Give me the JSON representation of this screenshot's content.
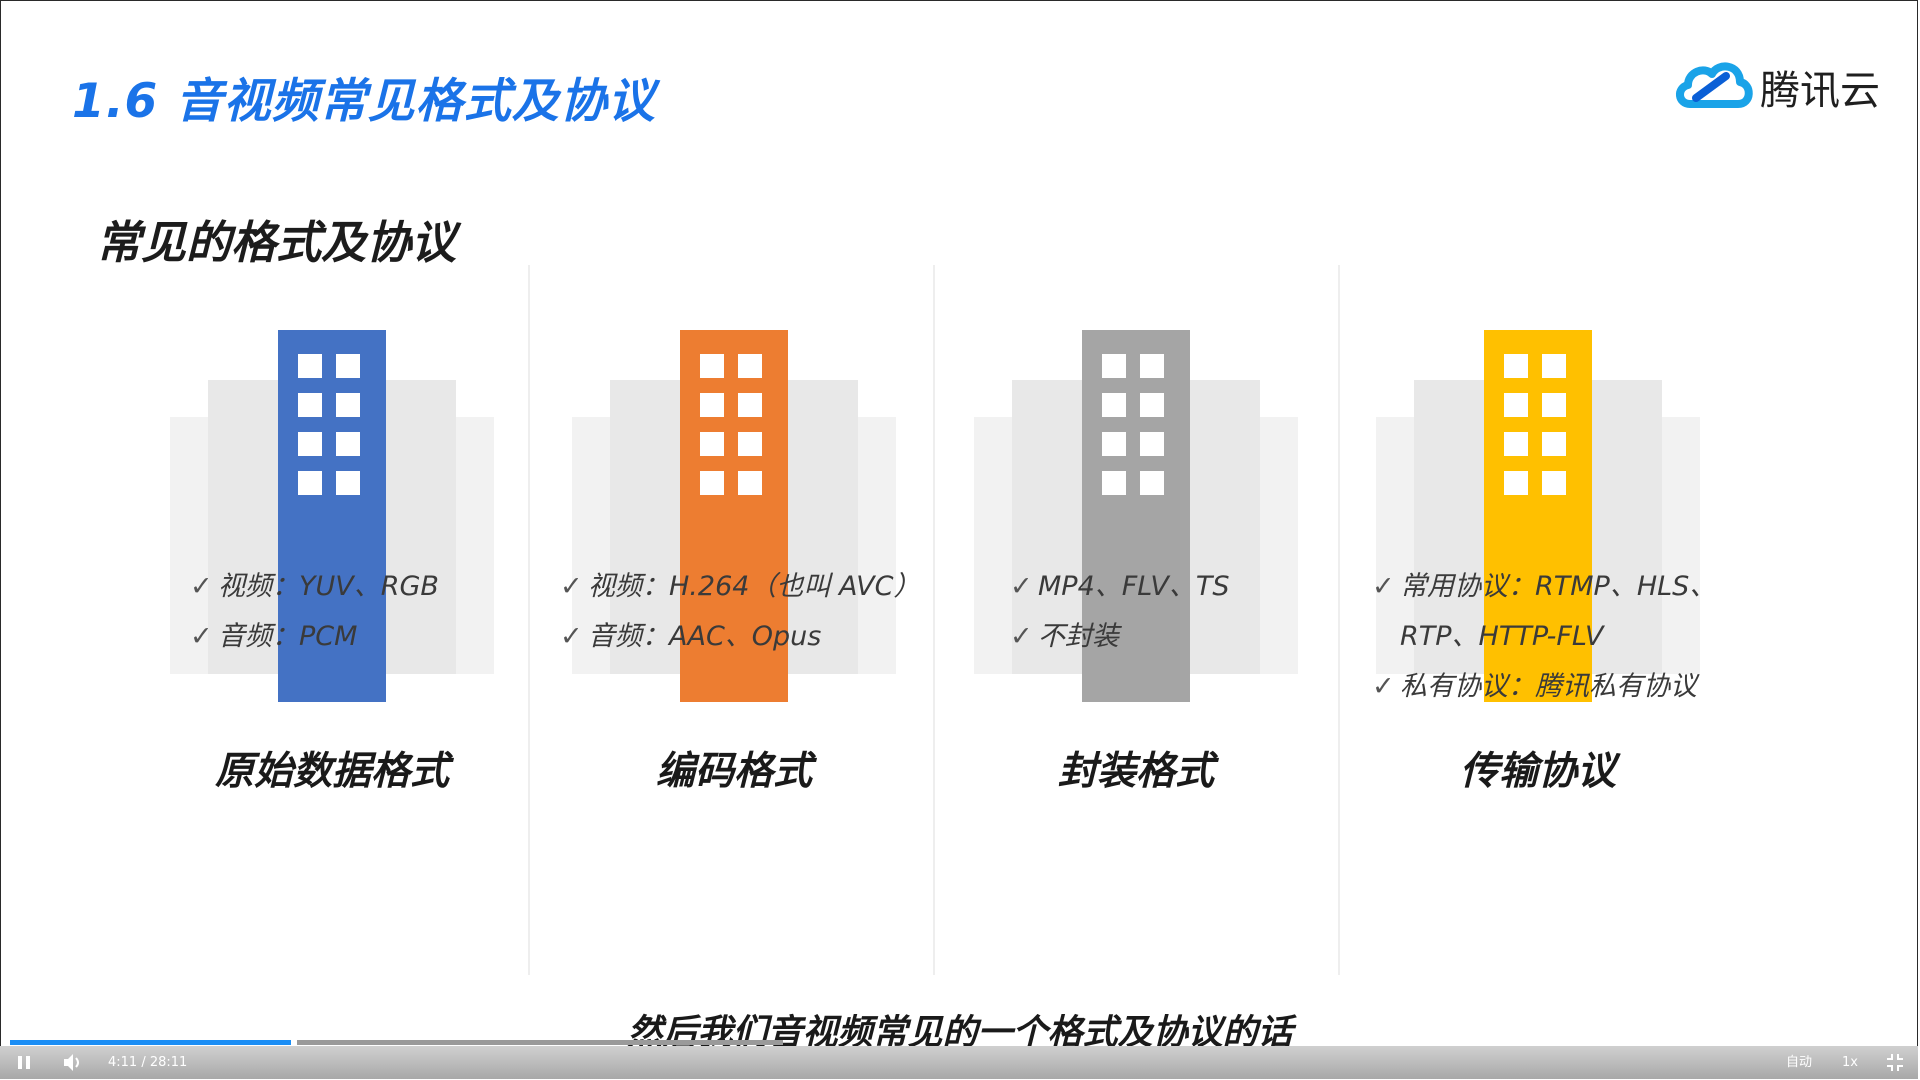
{
  "slide": {
    "title": "1.6 音视频常见格式及协议",
    "logo_text": "腾讯云",
    "section_title": "常见的格式及协议"
  },
  "columns": [
    {
      "title": "原始数据格式",
      "color": "#4472c4",
      "icon": "building-icon",
      "items": [
        "视频：YUV、RGB",
        "音频：PCM"
      ]
    },
    {
      "title": "编码格式",
      "color": "#ed7d31",
      "icon": "building-icon",
      "items": [
        "视频：H.264（也叫 AVC）",
        "音频：AAC、Opus"
      ]
    },
    {
      "title": "封装格式",
      "color": "#a5a5a5",
      "icon": "building-icon",
      "items": [
        "MP4、FLV、TS",
        "不封装"
      ]
    },
    {
      "title": "传输协议",
      "color": "#ffc000",
      "icon": "building-icon",
      "items": [
        "常用协议：RTMP、HLS、",
        "RTP、HTTP-FLV",
        "私有协议：腾讯私有协议"
      ]
    }
  ],
  "check_mark": "✓",
  "subtitle": "然后我们音视频常见的一个格式及协议的话",
  "player": {
    "time": "4:11 / 28:11",
    "quality": "自动",
    "speed": "1x",
    "played_fraction": 0.148,
    "buffered_fraction": 0.256,
    "accent": "#1b8ef5"
  }
}
